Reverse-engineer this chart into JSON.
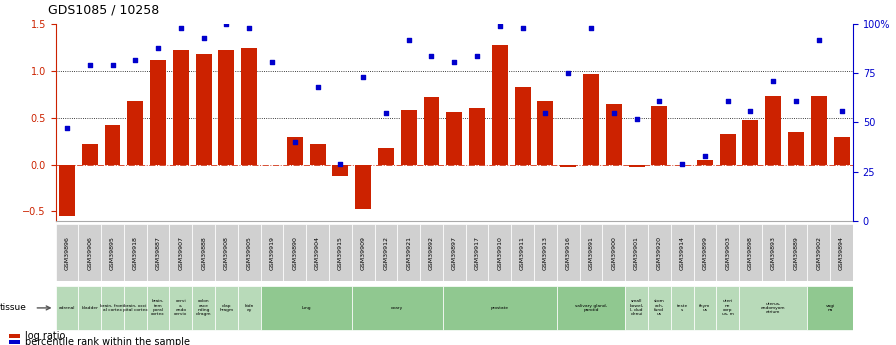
{
  "title": "GDS1085 / 10258",
  "samples": [
    "GSM39896",
    "GSM39906",
    "GSM39895",
    "GSM39918",
    "GSM39887",
    "GSM39907",
    "GSM39888",
    "GSM39908",
    "GSM39905",
    "GSM39919",
    "GSM39890",
    "GSM39904",
    "GSM39915",
    "GSM39909",
    "GSM39912",
    "GSM39921",
    "GSM39892",
    "GSM39897",
    "GSM39917",
    "GSM39910",
    "GSM39911",
    "GSM39913",
    "GSM39916",
    "GSM39891",
    "GSM39900",
    "GSM39901",
    "GSM39920",
    "GSM39914",
    "GSM39899",
    "GSM39903",
    "GSM39898",
    "GSM39893",
    "GSM39889",
    "GSM39902",
    "GSM39894"
  ],
  "log_ratio": [
    -0.55,
    0.22,
    0.42,
    0.68,
    1.12,
    1.22,
    1.18,
    1.22,
    1.25,
    0.0,
    0.3,
    0.22,
    -0.12,
    -0.47,
    0.18,
    0.58,
    0.72,
    0.56,
    0.6,
    1.28,
    0.83,
    0.68,
    -0.03,
    0.97,
    0.65,
    -0.03,
    0.63,
    0.0,
    0.05,
    0.33,
    0.48,
    0.73,
    0.35,
    0.73,
    0.3
  ],
  "pct_rank": [
    47,
    79,
    79,
    82,
    88,
    98,
    93,
    100,
    98,
    81,
    40,
    68,
    29,
    73,
    55,
    92,
    84,
    81,
    84,
    99,
    98,
    55,
    75,
    98,
    55,
    52,
    61,
    29,
    33,
    61,
    56,
    71,
    61,
    92,
    56
  ],
  "tissue_groups": [
    {
      "label": "adrenal",
      "start": 0,
      "end": 1,
      "color": "#b8dab9"
    },
    {
      "label": "bladder",
      "start": 1,
      "end": 2,
      "color": "#b8dab9"
    },
    {
      "label": "brain, front\nal cortex",
      "start": 2,
      "end": 3,
      "color": "#b8dab9"
    },
    {
      "label": "brain, occi\npital cortex",
      "start": 3,
      "end": 4,
      "color": "#b8dab9"
    },
    {
      "label": "brain,\ntem\nporal\ncortex",
      "start": 4,
      "end": 5,
      "color": "#b8dab9"
    },
    {
      "label": "cervi\nx,\nendo\ncervix",
      "start": 5,
      "end": 6,
      "color": "#b8dab9"
    },
    {
      "label": "colon\nasce\nnding\ndiragm",
      "start": 6,
      "end": 7,
      "color": "#b8dab9"
    },
    {
      "label": "diap\nhragm",
      "start": 7,
      "end": 8,
      "color": "#b8dab9"
    },
    {
      "label": "kidn\ney",
      "start": 8,
      "end": 9,
      "color": "#b8dab9"
    },
    {
      "label": "lung",
      "start": 9,
      "end": 13,
      "color": "#90c890"
    },
    {
      "label": "ovary",
      "start": 13,
      "end": 17,
      "color": "#90c890"
    },
    {
      "label": "prostate",
      "start": 17,
      "end": 22,
      "color": "#90c890"
    },
    {
      "label": "salivary gland,\nparotid",
      "start": 22,
      "end": 25,
      "color": "#90c890"
    },
    {
      "label": "small\nbowel,\nI, dud\ndenui",
      "start": 25,
      "end": 26,
      "color": "#b8dab9"
    },
    {
      "label": "stom\nach,\nfund\nus",
      "start": 26,
      "end": 27,
      "color": "#b8dab9"
    },
    {
      "label": "teste\ns",
      "start": 27,
      "end": 28,
      "color": "#b8dab9"
    },
    {
      "label": "thym\nus",
      "start": 28,
      "end": 29,
      "color": "#b8dab9"
    },
    {
      "label": "uteri\nne\ncorp\nus, m",
      "start": 29,
      "end": 30,
      "color": "#b8dab9"
    },
    {
      "label": "uterus,\nendomyom\netrium",
      "start": 30,
      "end": 33,
      "color": "#b8dab9"
    },
    {
      "label": "vagi\nna",
      "start": 33,
      "end": 35,
      "color": "#90c890"
    }
  ],
  "bar_color": "#cc2200",
  "dot_color": "#0000cc",
  "ylim_left": [
    -0.6,
    1.5
  ],
  "ylim_right": [
    0,
    100
  ],
  "yticks_left": [
    -0.5,
    0.0,
    0.5,
    1.0,
    1.5
  ],
  "yticks_right": [
    0,
    25,
    50,
    75,
    100
  ],
  "bg_color": "#ffffff"
}
